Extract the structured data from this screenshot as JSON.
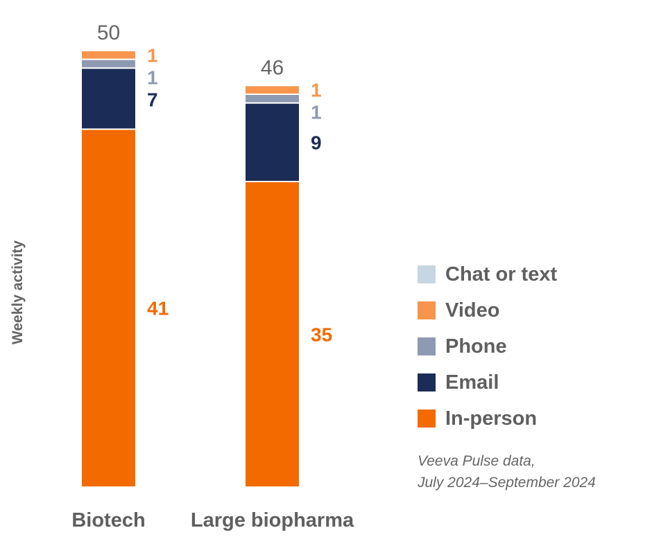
{
  "chart_data": {
    "type": "bar",
    "stacked": true,
    "categories": [
      "Biotech",
      "Large biopharma"
    ],
    "ylabel": "Weekly activity",
    "ylim": [
      0,
      50
    ],
    "grid": false,
    "legend_position": "right",
    "series": [
      {
        "name": "In-person",
        "color": "#F26A00",
        "values": [
          41,
          35
        ]
      },
      {
        "name": "Email",
        "color": "#1B2D57",
        "values": [
          7,
          9
        ]
      },
      {
        "name": "Phone",
        "color": "#8E9AB1",
        "values": [
          1,
          1
        ]
      },
      {
        "name": "Video",
        "color": "#F7954D",
        "values": [
          1,
          1
        ]
      },
      {
        "name": "Chat or text",
        "color": "#C6D6E2",
        "values": [
          0,
          0
        ]
      }
    ],
    "totals": [
      50,
      46
    ],
    "legend_order": [
      "Chat or text",
      "Video",
      "Phone",
      "Email",
      "In-person"
    ],
    "source": [
      "Veeva Pulse data,",
      "July 2024–September 2024"
    ]
  }
}
